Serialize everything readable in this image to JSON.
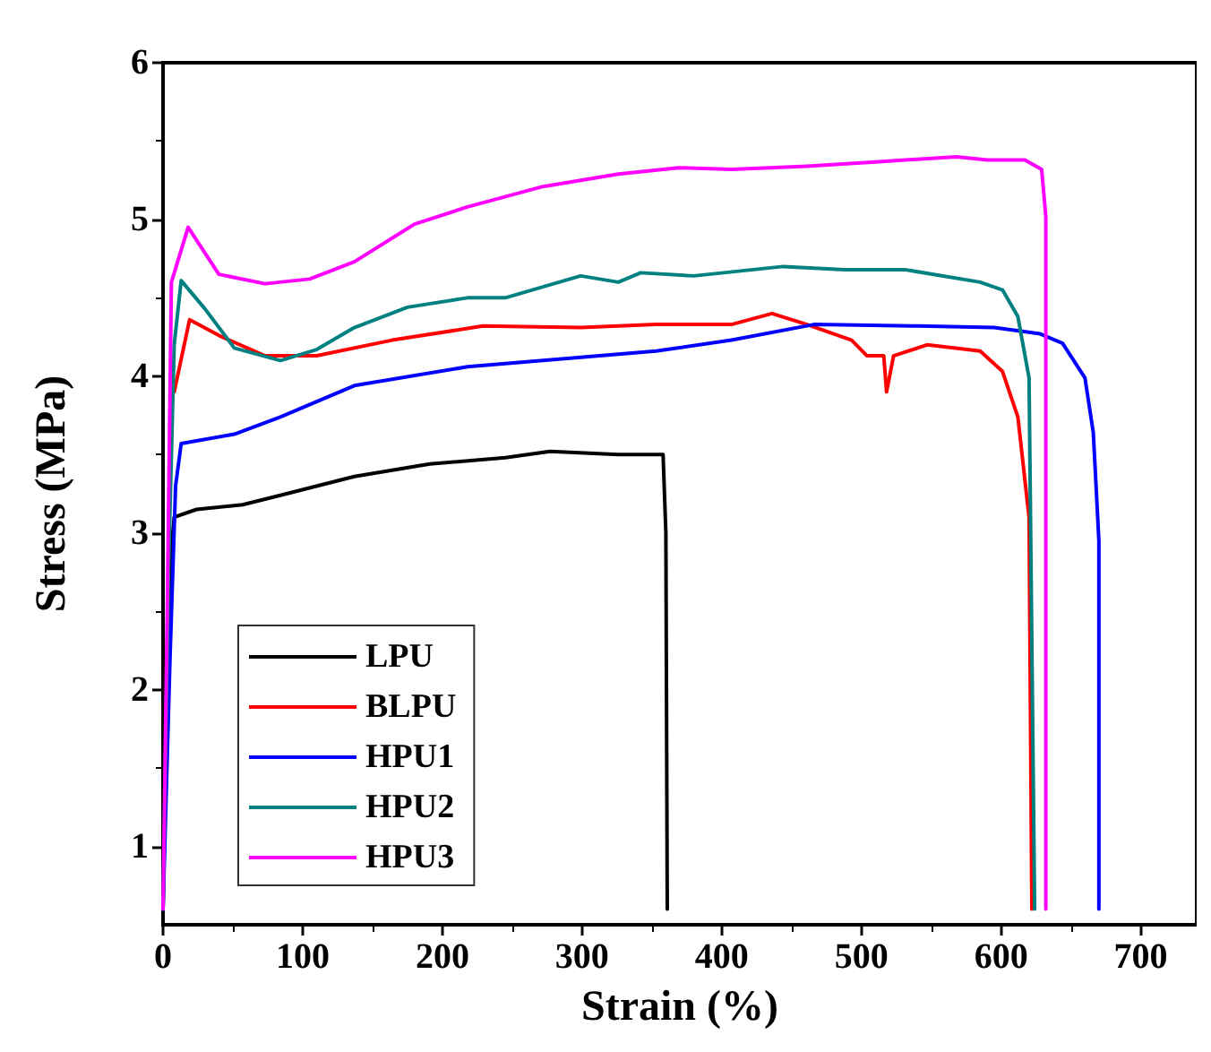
{
  "chart_data": {
    "type": "line",
    "xlabel": "Strain (%)",
    "ylabel": "Stress (MPa)",
    "xlim": [
      0,
      740
    ],
    "ylim": [
      0.5,
      6
    ],
    "xticks": [
      0,
      100,
      200,
      300,
      400,
      500,
      600,
      700
    ],
    "yticks": [
      1,
      2,
      3,
      4,
      5,
      6
    ],
    "grid": false,
    "legend": "bottom left",
    "marker": "none",
    "line_style": "solid",
    "series": [
      {
        "name": "LPU",
        "color": "#000000",
        "x": [
          0,
          3,
          6,
          8,
          24,
          57,
          84,
          137,
          191,
          245,
          277,
          326,
          358,
          360,
          361
        ],
        "values": [
          0.6,
          2.0,
          2.9,
          3.1,
          3.15,
          3.18,
          3.24,
          3.36,
          3.44,
          3.48,
          3.52,
          3.5,
          3.5,
          3.0,
          0.6
        ]
      },
      {
        "name": "BLPU",
        "color": "#ff0000",
        "x": [
          8,
          19,
          40,
          73,
          110,
          164,
          229,
          299,
          353,
          407,
          436,
          461,
          493,
          504,
          516,
          518,
          523,
          547,
          585,
          601,
          612,
          620,
          622
        ],
        "values": [
          3.9,
          4.36,
          4.26,
          4.13,
          4.13,
          4.23,
          4.32,
          4.31,
          4.33,
          4.33,
          4.4,
          4.33,
          4.23,
          4.13,
          4.13,
          3.9,
          4.13,
          4.2,
          4.16,
          4.03,
          3.74,
          3.1,
          0.6
        ]
      },
      {
        "name": "HPU1",
        "color": "#0000ff",
        "x": [
          0,
          5,
          9,
          13,
          51,
          84,
          137,
          218,
          299,
          353,
          407,
          466,
          541,
          595,
          628,
          644,
          660,
          666,
          670,
          670
        ],
        "values": [
          0.6,
          2.2,
          3.3,
          3.57,
          3.63,
          3.74,
          3.94,
          4.06,
          4.12,
          4.16,
          4.23,
          4.33,
          4.32,
          4.31,
          4.27,
          4.21,
          3.99,
          3.64,
          2.95,
          0.6
        ]
      },
      {
        "name": "HPU2",
        "color": "#008080",
        "x": [
          0,
          4,
          8,
          13,
          30,
          51,
          84,
          110,
          137,
          175,
          218,
          245,
          299,
          326,
          342,
          380,
          444,
          488,
          531,
          585,
          601,
          612,
          620,
          624
        ],
        "values": [
          0.6,
          2.8,
          4.2,
          4.61,
          4.43,
          4.18,
          4.1,
          4.17,
          4.31,
          4.44,
          4.5,
          4.5,
          4.64,
          4.6,
          4.66,
          4.64,
          4.7,
          4.68,
          4.68,
          4.6,
          4.55,
          4.38,
          3.99,
          0.6
        ]
      },
      {
        "name": "HPU3",
        "color": "#ff00ff",
        "x": [
          0,
          3,
          6,
          18,
          40,
          73,
          105,
          137,
          180,
          218,
          272,
          326,
          369,
          407,
          461,
          515,
          568,
          590,
          617,
          629,
          632,
          632
        ],
        "values": [
          0.6,
          2.5,
          4.6,
          4.95,
          4.65,
          4.59,
          4.62,
          4.73,
          4.97,
          5.08,
          5.21,
          5.29,
          5.33,
          5.32,
          5.34,
          5.37,
          5.4,
          5.38,
          5.38,
          5.32,
          5.02,
          0.6
        ]
      }
    ]
  }
}
